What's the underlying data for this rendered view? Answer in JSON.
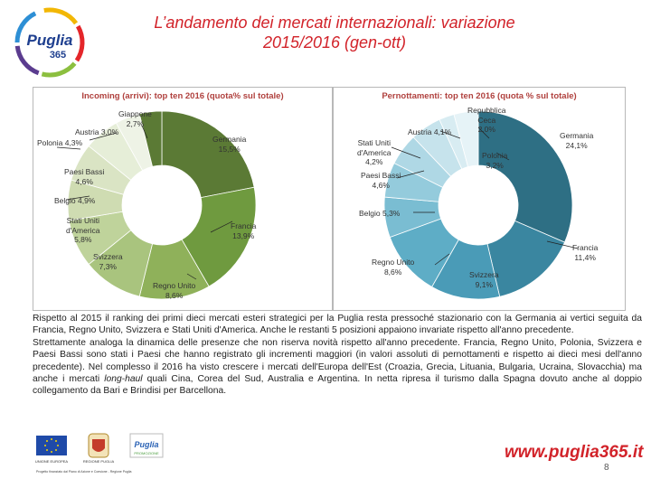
{
  "header": {
    "title_line1": "L’andamento dei mercati internazionali: variazione",
    "title_line2": "2015/2016 (gen-ott)",
    "logo_text_top": "Puglia",
    "logo_text_num": "365"
  },
  "colors": {
    "title_red": "#d2232a",
    "panel_title": "#b0413e",
    "left_chart": [
      "#5b7a35",
      "#6f9a3f",
      "#8fb15a",
      "#a9c47e",
      "#bfd39b",
      "#cfdcb2",
      "#dae4c4",
      "#e6eed8",
      "#eef3e6"
    ],
    "right_chart": [
      "#2e6f84",
      "#3a86a0",
      "#4a9bb7",
      "#5eadc6",
      "#7abdd2",
      "#94cbdc",
      "#afd8e5",
      "#c6e3ec",
      "#d8ecf2",
      "#e6f3f7"
    ]
  },
  "chart_data": [
    {
      "type": "pie",
      "title": "Incoming (arrivi): top ten 2016 (quota% sul totale)",
      "categories": [
        "Germania",
        "Francia",
        "Regno Unito",
        "Svizzera",
        "Stati Uniti d'America",
        "Belgio",
        "Paesi Bassi",
        "Polonia",
        "Austria",
        "Giappone"
      ],
      "values": [
        15.5,
        13.9,
        8.6,
        7.3,
        5.8,
        4.9,
        4.6,
        4.3,
        3.0,
        2.7
      ],
      "value_labels": [
        "15,5%",
        "13,9%",
        "8,6%",
        "7,3%",
        "5,8%",
        "4,9%",
        "4,6%",
        "4,3%",
        "3,0%",
        "2,7%"
      ]
    },
    {
      "type": "pie",
      "title": "Pernottamenti: top ten 2016 (quota % sul totale)",
      "categories": [
        "Germania",
        "Francia",
        "Svizzera",
        "Regno Unito",
        "Belgio",
        "Paesi Bassi",
        "Stati Uniti d'America",
        "Austria",
        "Repubblica Ceca",
        "Polonia"
      ],
      "values": [
        24.1,
        11.4,
        9.1,
        8.6,
        5.3,
        4.6,
        4.2,
        4.1,
        2.0,
        3.2
      ],
      "value_labels": [
        "24,1%",
        "11,4%",
        "9,1%",
        "8,6%",
        "5,3%",
        "4,6%",
        "4,2%",
        "4,1%",
        "2,0%",
        "3,2%"
      ]
    }
  ],
  "left_labels": {
    "germania": "Germania",
    "germania_v": "15,5%",
    "francia": "Francia",
    "francia_v": "13,9%",
    "regno_unito": "Regno Unito",
    "regno_unito_v": "8,6%",
    "svizzera": "Svizzera",
    "svizzera_v": "7,3%",
    "stati_uniti_1": "Stati Uniti",
    "stati_uniti_2": "d'America",
    "stati_uniti_v": "5,8%",
    "belgio": "Belgio 4,9%",
    "paesi_bassi": "Paesi Bassi",
    "paesi_bassi_v": "4,6%",
    "polonia": "Polonia 4,3%",
    "austria": "Austria 3,0%",
    "giappone": "Giappone",
    "giappone_v": "2,7%"
  },
  "right_labels": {
    "germania": "Germania",
    "germania_v": "24,1%",
    "francia": "Francia",
    "francia_v": "11,4%",
    "svizzera": "Svizzera",
    "svizzera_v": "9,1%",
    "regno_unito": "Regno Unito",
    "regno_unito_v": "8,6%",
    "belgio": "Belgio 5,3%",
    "paesi_bassi": "Paesi Bassi",
    "paesi_bassi_v": "4,6%",
    "stati_uniti_1": "Stati Uniti",
    "stati_uniti_2": "d'America",
    "stati_uniti_v": "4,2%",
    "austria": "Austria 4,1%",
    "rep_ceca_1": "Repubblica",
    "rep_ceca_2": "Ceca",
    "rep_ceca_v": "2,0%",
    "polonia": "Polonia",
    "polonia_v": "3,2%"
  },
  "body_text": {
    "p1": "Rispetto al 2015 il ranking dei primi dieci mercati esteri strategici per la Puglia resta pressoché stazionario con la Germania ai vertici seguita da Francia, Regno Unito, Svizzera e Stati Uniti d'America. Anche le restanti 5 posizioni appaiono invariate rispetto all'anno precedente.",
    "p2_a": "Strettamente analoga la dinamica delle presenze che non riserva novità rispetto all'anno precedente. Francia, Regno Unito, Polonia, Svizzera e Paesi Bassi sono stati i Paesi che hanno registrato gli incrementi maggiori (in valori assoluti di pernottamenti e rispetto ai dieci mesi dell'anno precedente). Nel complesso il 2016 ha visto crescere i mercati dell'Europa dell'Est (Croazia, Grecia, Lituania, Bulgaria, Ucraina, Slovacchia) ma anche i mercati ",
    "p2_italic": "long-haul",
    "p2_b": " quali Cina, Corea del Sud, Australia e Argentina. In netta ripresa il turismo dalla Spagna dovuto anche al doppio collegamento da Bari e Brindisi per Barcellona."
  },
  "footer": {
    "url": "www.puglia365.it",
    "page_number": "8",
    "eu_label": "UNIONE EUROPEA",
    "region_label": "REGIONE PUGLIA",
    "promo_label": "PROMOZIONE",
    "fine_print": "Progetto finanziato dal Piano di Azione e Coesione - Regione Puglia"
  }
}
